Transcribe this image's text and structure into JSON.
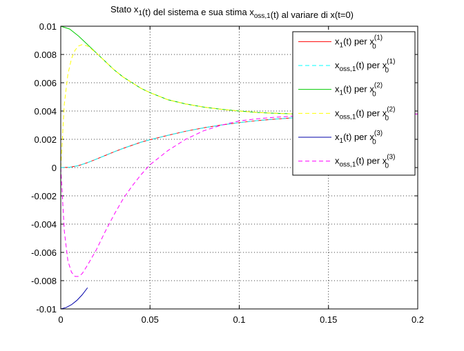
{
  "chart_data": {
    "type": "line",
    "title": {
      "segments": [
        {
          "t": "Stato x"
        },
        {
          "t": "1",
          "sub": true
        },
        {
          "t": "(t) del sistema e sua stima x"
        },
        {
          "t": "oss,1",
          "sub": true
        },
        {
          "t": "(t) al variare di x(t=0)"
        }
      ]
    },
    "xlabel": "",
    "ylabel": "",
    "xlim": [
      0,
      0.2
    ],
    "ylim": [
      -0.01,
      0.01
    ],
    "xticks": [
      0,
      0.05,
      0.1,
      0.15,
      0.2
    ],
    "xtick_labels": [
      "0",
      "0.05",
      "0.1",
      "0.15",
      "0.2"
    ],
    "yticks": [
      -0.01,
      -0.008,
      -0.006,
      -0.004,
      -0.002,
      0,
      0.002,
      0.004,
      0.006,
      0.008,
      0.01
    ],
    "ytick_labels": [
      "-0.01",
      "-0.008",
      "-0.006",
      "-0.004",
      "-0.002",
      "0",
      "0.002",
      "0.004",
      "0.006",
      "0.008",
      "0.01"
    ],
    "grid": true,
    "grid_style": "dotted",
    "legend_position": "top-right",
    "series": [
      {
        "id": "x1-1",
        "legend": {
          "main": "x",
          "sub": "1",
          "mid": "(t) per x",
          "sup": "(1)",
          "sub2": "0"
        },
        "color": "#ff0000",
        "dash": "solid",
        "x": [
          0,
          0.005,
          0.01,
          0.015,
          0.02,
          0.025,
          0.03,
          0.035,
          0.04,
          0.045,
          0.05,
          0.06,
          0.07,
          0.08,
          0.09,
          0.1,
          0.11,
          0.12,
          0.13,
          0.14,
          0.15,
          0.17,
          0.2
        ],
        "y": [
          0,
          2e-05,
          0.00014,
          0.00035,
          0.0006,
          0.00086,
          0.00112,
          0.00136,
          0.00158,
          0.0018,
          0.00197,
          0.00228,
          0.00257,
          0.00281,
          0.00301,
          0.00318,
          0.00332,
          0.00343,
          0.00352,
          0.00359,
          0.00365,
          0.00373,
          0.00379
        ]
      },
      {
        "id": "xoss1-1",
        "legend": {
          "main": "x",
          "sub": "oss,1",
          "mid": "(t) per x",
          "sup": "(1)",
          "sub2": "0"
        },
        "color": "#00ffff",
        "dash": "dashed",
        "x": [
          0,
          0.005,
          0.01,
          0.015,
          0.02,
          0.025,
          0.03,
          0.035,
          0.04,
          0.045,
          0.05,
          0.06,
          0.07,
          0.08,
          0.09,
          0.1,
          0.11,
          0.12,
          0.13,
          0.14,
          0.15,
          0.17,
          0.2
        ],
        "y": [
          0,
          2e-05,
          0.00014,
          0.00035,
          0.0006,
          0.00086,
          0.00112,
          0.00136,
          0.00158,
          0.0018,
          0.00197,
          0.00228,
          0.00257,
          0.00281,
          0.00301,
          0.00318,
          0.00332,
          0.00343,
          0.00352,
          0.00359,
          0.00365,
          0.00373,
          0.00379
        ]
      },
      {
        "id": "x1-2",
        "legend": {
          "main": "x",
          "sub": "1",
          "mid": "(t) per x",
          "sup": "(2)",
          "sub2": "0"
        },
        "color": "#00cc00",
        "dash": "solid",
        "x": [
          0,
          0.005,
          0.01,
          0.015,
          0.02,
          0.025,
          0.03,
          0.035,
          0.04,
          0.045,
          0.05,
          0.06,
          0.07,
          0.08,
          0.09,
          0.1,
          0.11,
          0.12,
          0.13,
          0.14,
          0.15,
          0.17,
          0.2
        ],
        "y": [
          0.01,
          0.0098,
          0.0093,
          0.0087,
          0.0081,
          0.0075,
          0.0069,
          0.0064,
          0.006,
          0.0056,
          0.0053,
          0.0048,
          0.0045,
          0.00428,
          0.00412,
          0.004,
          0.0039,
          0.00384,
          0.0038,
          0.00379,
          0.00378,
          0.00378,
          0.00378
        ]
      },
      {
        "id": "xoss1-2",
        "legend": {
          "main": "x",
          "sub": "oss,1",
          "mid": "(t) per x",
          "sup": "(2)",
          "sub2": "0"
        },
        "color": "#ffff00",
        "dash": "dashed",
        "x": [
          0,
          0.002,
          0.004,
          0.006,
          0.008,
          0.01,
          0.012,
          0.015,
          0.02,
          0.025,
          0.03,
          0.035,
          0.04,
          0.045,
          0.05,
          0.06,
          0.07,
          0.08,
          0.09,
          0.1,
          0.11,
          0.12,
          0.13,
          0.14,
          0.15,
          0.17,
          0.2
        ],
        "y": [
          0,
          0.0045,
          0.0066,
          0.0077,
          0.0083,
          0.0086,
          0.0087,
          0.0086,
          0.0081,
          0.0075,
          0.0069,
          0.0064,
          0.006,
          0.0056,
          0.0053,
          0.0048,
          0.0045,
          0.00428,
          0.00412,
          0.004,
          0.0039,
          0.00384,
          0.0038,
          0.00379,
          0.00378,
          0.00378,
          0.00378
        ]
      },
      {
        "id": "x1-3",
        "legend": {
          "main": "x",
          "sub": "1",
          "mid": "(t) per x",
          "sup": "(3)",
          "sub2": "0"
        },
        "color": "#0000aa",
        "dash": "solid",
        "x": [
          0,
          0.003,
          0.006,
          0.009,
          0.012,
          0.015
        ],
        "y": [
          -0.01,
          -0.0099,
          -0.0097,
          -0.0094,
          -0.009,
          -0.0085
        ]
      },
      {
        "id": "xoss1-3",
        "legend": {
          "main": "x",
          "sub": "oss,1",
          "mid": "(t) per x",
          "sup": "(3)",
          "sub2": "0"
        },
        "color": "#ff00ff",
        "dash": "dashed",
        "x": [
          0,
          0.002,
          0.004,
          0.006,
          0.008,
          0.01,
          0.012,
          0.015,
          0.02,
          0.025,
          0.03,
          0.035,
          0.04,
          0.045,
          0.05,
          0.06,
          0.07,
          0.08,
          0.09,
          0.1,
          0.11,
          0.12,
          0.13,
          0.14,
          0.15,
          0.17,
          0.2
        ],
        "y": [
          0,
          -0.0045,
          -0.0066,
          -0.0074,
          -0.0077,
          -0.0077,
          -0.0075,
          -0.0069,
          -0.0058,
          -0.0045,
          -0.0033,
          -0.0022,
          -0.0013,
          -0.0005,
          0.0002,
          0.0012,
          0.002,
          0.0026,
          0.003,
          0.0033,
          0.00345,
          0.00356,
          0.00364,
          0.0037,
          0.00373,
          0.00376,
          0.00378
        ]
      }
    ]
  }
}
